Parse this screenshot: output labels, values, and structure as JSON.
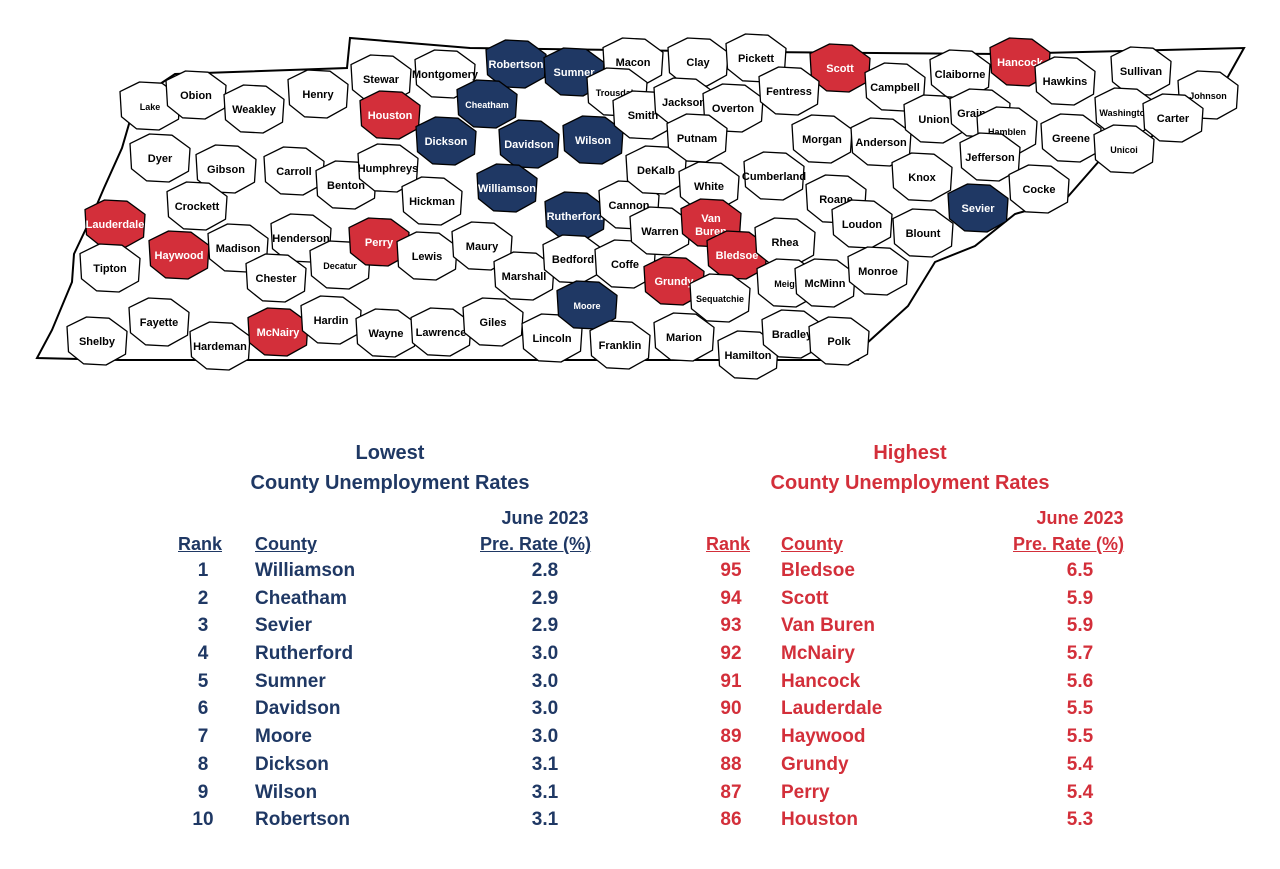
{
  "colors": {
    "lowest": "#1f3864",
    "highest": "#d32f3a",
    "base": "#ffffff",
    "border": "#000000"
  },
  "map": {
    "counties": [
      {
        "name": "Lake",
        "group": "none"
      },
      {
        "name": "Obion",
        "group": "none"
      },
      {
        "name": "Weakley",
        "group": "none"
      },
      {
        "name": "Henry",
        "group": "none"
      },
      {
        "name": "Stewar",
        "group": "none"
      },
      {
        "name": "Montgomery",
        "group": "none"
      },
      {
        "name": "Robertson",
        "group": "low"
      },
      {
        "name": "Sumner",
        "group": "low"
      },
      {
        "name": "Macon",
        "group": "none"
      },
      {
        "name": "Clay",
        "group": "none"
      },
      {
        "name": "Pickett",
        "group": "none"
      },
      {
        "name": "Scott",
        "group": "high"
      },
      {
        "name": "Campbell",
        "group": "none"
      },
      {
        "name": "Claiborne",
        "group": "none"
      },
      {
        "name": "Hancock",
        "group": "high"
      },
      {
        "name": "Hawkins",
        "group": "none"
      },
      {
        "name": "Sullivan",
        "group": "none"
      },
      {
        "name": "Johnson",
        "group": "none"
      },
      {
        "name": "Dyer",
        "group": "none"
      },
      {
        "name": "Gibson",
        "group": "none"
      },
      {
        "name": "Carroll",
        "group": "none"
      },
      {
        "name": "Benton",
        "group": "none"
      },
      {
        "name": "Houston",
        "group": "high"
      },
      {
        "name": "Humphreys",
        "group": "none"
      },
      {
        "name": "Dickson",
        "group": "low"
      },
      {
        "name": "Cheatham",
        "group": "low"
      },
      {
        "name": "Davidson",
        "group": "low"
      },
      {
        "name": "Wilson",
        "group": "low"
      },
      {
        "name": "Trousdale",
        "group": "none"
      },
      {
        "name": "Smith",
        "group": "none"
      },
      {
        "name": "Jackson",
        "group": "none"
      },
      {
        "name": "Overton",
        "group": "none"
      },
      {
        "name": "Fentress",
        "group": "none"
      },
      {
        "name": "Putnam",
        "group": "none"
      },
      {
        "name": "Morgan",
        "group": "none"
      },
      {
        "name": "Anderson",
        "group": "none"
      },
      {
        "name": "Union",
        "group": "none"
      },
      {
        "name": "Grainger",
        "group": "none"
      },
      {
        "name": "Hamblen",
        "group": "none"
      },
      {
        "name": "Jefferson",
        "group": "none"
      },
      {
        "name": "Greene",
        "group": "none"
      },
      {
        "name": "Washington",
        "group": "none"
      },
      {
        "name": "Carter",
        "group": "none"
      },
      {
        "name": "Unicoi",
        "group": "none"
      },
      {
        "name": "Lauderdale",
        "group": "high"
      },
      {
        "name": "Crockett",
        "group": "none"
      },
      {
        "name": "Haywood",
        "group": "high"
      },
      {
        "name": "Madison",
        "group": "none"
      },
      {
        "name": "Henderson",
        "group": "none"
      },
      {
        "name": "Decatur",
        "group": "none"
      },
      {
        "name": "Perry",
        "group": "high"
      },
      {
        "name": "Hickman",
        "group": "none"
      },
      {
        "name": "Williamson",
        "group": "low"
      },
      {
        "name": "Rutherford",
        "group": "low"
      },
      {
        "name": "Cannon",
        "group": "none"
      },
      {
        "name": "DeKalb",
        "group": "none"
      },
      {
        "name": "White",
        "group": "none"
      },
      {
        "name": "Cumberland",
        "group": "none"
      },
      {
        "name": "Roane",
        "group": "none"
      },
      {
        "name": "Knox",
        "group": "none"
      },
      {
        "name": "Sevier",
        "group": "low"
      },
      {
        "name": "Cocke",
        "group": "none"
      },
      {
        "name": "Loudon",
        "group": "none"
      },
      {
        "name": "Blount",
        "group": "none"
      },
      {
        "name": "Tipton",
        "group": "none"
      },
      {
        "name": "Chester",
        "group": "none"
      },
      {
        "name": "Lewis",
        "group": "none"
      },
      {
        "name": "Maury",
        "group": "none"
      },
      {
        "name": "Marshall",
        "group": "none"
      },
      {
        "name": "Bedford",
        "group": "none"
      },
      {
        "name": "Coffe",
        "group": "none"
      },
      {
        "name": "Warren",
        "group": "none"
      },
      {
        "name": "Van Buren",
        "group": "high"
      },
      {
        "name": "Bledsoe",
        "group": "high"
      },
      {
        "name": "Rhea",
        "group": "none"
      },
      {
        "name": "Meigs",
        "group": "none"
      },
      {
        "name": "McMinn",
        "group": "none"
      },
      {
        "name": "Monroe",
        "group": "none"
      },
      {
        "name": "Grundy",
        "group": "high"
      },
      {
        "name": "Sequatchie",
        "group": "none"
      },
      {
        "name": "Shelby",
        "group": "none"
      },
      {
        "name": "Fayette",
        "group": "none"
      },
      {
        "name": "Hardeman",
        "group": "none"
      },
      {
        "name": "McNairy",
        "group": "high"
      },
      {
        "name": "Hardin",
        "group": "none"
      },
      {
        "name": "Wayne",
        "group": "none"
      },
      {
        "name": "Lawrence",
        "group": "none"
      },
      {
        "name": "Giles",
        "group": "none"
      },
      {
        "name": "Lincoln",
        "group": "none"
      },
      {
        "name": "Moore",
        "group": "low"
      },
      {
        "name": "Franklin",
        "group": "none"
      },
      {
        "name": "Marion",
        "group": "none"
      },
      {
        "name": "Hamilton",
        "group": "none"
      },
      {
        "name": "Bradley",
        "group": "none"
      },
      {
        "name": "Polk",
        "group": "none"
      }
    ]
  },
  "lowest": {
    "title_line1": "Lowest",
    "title_line2": "County Unemployment Rates",
    "date_header": "June 2023",
    "rank_header": "Rank",
    "county_header": "County",
    "rate_header": "Pre. Rate (%)",
    "rows": [
      {
        "rank": "1",
        "county": "Williamson",
        "rate": "2.8"
      },
      {
        "rank": "2",
        "county": "Cheatham",
        "rate": "2.9"
      },
      {
        "rank": "3",
        "county": "Sevier",
        "rate": "2.9"
      },
      {
        "rank": "4",
        "county": "Rutherford",
        "rate": "3.0"
      },
      {
        "rank": "5",
        "county": "Sumner",
        "rate": "3.0"
      },
      {
        "rank": "6",
        "county": "Davidson",
        "rate": "3.0"
      },
      {
        "rank": "7",
        "county": "Moore",
        "rate": "3.0"
      },
      {
        "rank": "8",
        "county": "Dickson",
        "rate": "3.1"
      },
      {
        "rank": "9",
        "county": "Wilson",
        "rate": "3.1"
      },
      {
        "rank": "10",
        "county": "Robertson",
        "rate": "3.1"
      }
    ]
  },
  "highest": {
    "title_line1": "Highest",
    "title_line2": "County Unemployment Rates",
    "date_header": "June 2023",
    "rank_header": "Rank",
    "county_header": "County",
    "rate_header": "Pre. Rate (%)",
    "rows": [
      {
        "rank": "95",
        "county": "Bledsoe",
        "rate": "6.5"
      },
      {
        "rank": "94",
        "county": "Scott",
        "rate": "5.9"
      },
      {
        "rank": "93",
        "county": "Van Buren",
        "rate": "5.9"
      },
      {
        "rank": "92",
        "county": "McNairy",
        "rate": "5.7"
      },
      {
        "rank": "91",
        "county": "Hancock",
        "rate": "5.6"
      },
      {
        "rank": "90",
        "county": "Lauderdale",
        "rate": "5.5"
      },
      {
        "rank": "89",
        "county": "Haywood",
        "rate": "5.5"
      },
      {
        "rank": "88",
        "county": "Grundy",
        "rate": "5.4"
      },
      {
        "rank": "87",
        "county": "Perry",
        "rate": "5.4"
      },
      {
        "rank": "86",
        "county": "Houston",
        "rate": "5.3"
      }
    ]
  }
}
